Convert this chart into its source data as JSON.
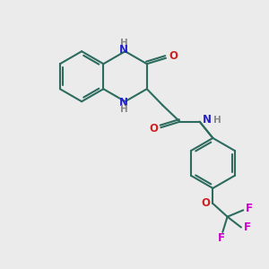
{
  "bg_color": "#ebebeb",
  "bond_color": "#2d6b5e",
  "n_color": "#2222cc",
  "o_color": "#cc2222",
  "f_color": "#cc00cc",
  "h_color": "#888888",
  "line_width": 1.5,
  "figsize": [
    3.0,
    3.0
  ],
  "dpi": 100,
  "xlim": [
    0,
    10
  ],
  "ylim": [
    0,
    10
  ]
}
